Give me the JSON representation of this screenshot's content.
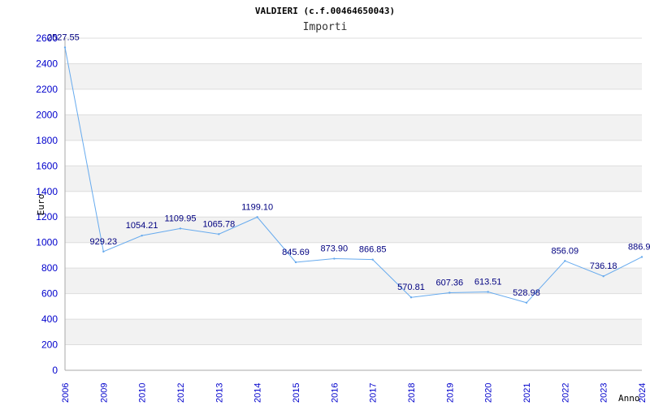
{
  "chart_data": {
    "type": "line",
    "title": "VALDIERI (c.f.00464650043)",
    "subtitle": "Importi",
    "ylabel": "Euro",
    "xlabel": "Anno",
    "ylim": [
      0,
      2600
    ],
    "yticks": [
      0,
      200,
      400,
      600,
      800,
      1000,
      1200,
      1400,
      1600,
      1800,
      2000,
      2200,
      2400,
      2600
    ],
    "grid": "alternating horizontal bands",
    "series": [
      {
        "name": "Importi",
        "color": "#66aaee",
        "points": [
          {
            "x": "2006",
            "y": 2527.55,
            "label": "2527.55"
          },
          {
            "x": "2009",
            "y": 929.23,
            "label": "929.23"
          },
          {
            "x": "2010",
            "y": 1054.21,
            "label": "1054.21"
          },
          {
            "x": "2012",
            "y": 1109.95,
            "label": "1109.95"
          },
          {
            "x": "2013",
            "y": 1065.78,
            "label": "1065.78"
          },
          {
            "x": "2014",
            "y": 1199.1,
            "label": "1199.10"
          },
          {
            "x": "2015",
            "y": 845.69,
            "label": "845.69"
          },
          {
            "x": "2016",
            "y": 873.9,
            "label": "873.90"
          },
          {
            "x": "2017",
            "y": 866.85,
            "label": "866.85"
          },
          {
            "x": "2018",
            "y": 570.81,
            "label": "570.81"
          },
          {
            "x": "2019",
            "y": 607.36,
            "label": "607.36"
          },
          {
            "x": "2020",
            "y": 613.51,
            "label": "613.51"
          },
          {
            "x": "2021",
            "y": 528.98,
            "label": "528.98"
          },
          {
            "x": "2022",
            "y": 856.09,
            "label": "856.09"
          },
          {
            "x": "2023",
            "y": 736.18,
            "label": "736.18"
          },
          {
            "x": "2024",
            "y": 886.9,
            "label": "886.9"
          }
        ]
      }
    ]
  }
}
